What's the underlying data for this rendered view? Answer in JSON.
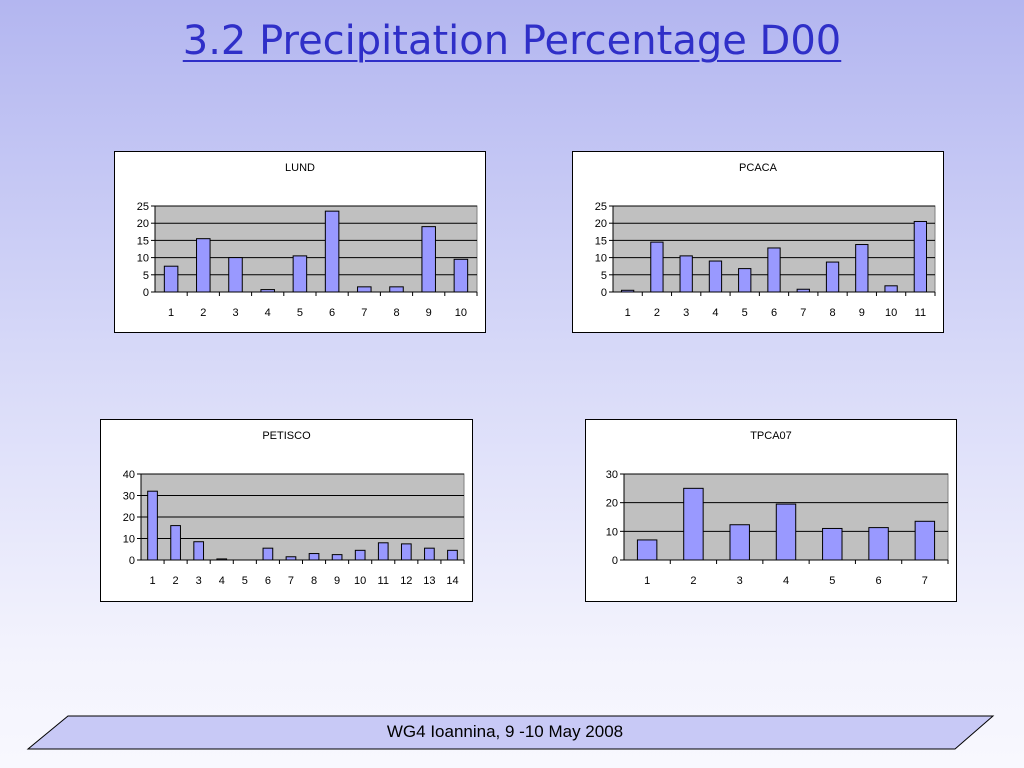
{
  "slide": {
    "title": "3.2 Precipitation Percentage D00",
    "footer": "WG4 Ioannina, 9 -10 May 2008"
  },
  "colors": {
    "bar_fill": "#9999ff",
    "plot_background": "#c0c0c0",
    "title_color": "#2f2fc8"
  },
  "chart_data": [
    {
      "type": "bar",
      "title": "LUND",
      "categories": [
        "1",
        "2",
        "3",
        "4",
        "5",
        "6",
        "7",
        "8",
        "9",
        "10"
      ],
      "values": [
        7.5,
        15.5,
        10,
        0.7,
        10.5,
        23.5,
        1.5,
        1.5,
        19,
        9.5
      ],
      "ylim": [
        0,
        25
      ],
      "yticks": [
        0,
        5,
        10,
        15,
        20,
        25
      ],
      "grid": true
    },
    {
      "type": "bar",
      "title": "PCACA",
      "categories": [
        "1",
        "2",
        "3",
        "4",
        "5",
        "6",
        "7",
        "8",
        "9",
        "10",
        "11"
      ],
      "values": [
        0.5,
        14.5,
        10.5,
        9,
        6.8,
        12.8,
        0.8,
        8.7,
        13.8,
        1.8,
        20.5
      ],
      "ylim": [
        0,
        25
      ],
      "yticks": [
        0,
        5,
        10,
        15,
        20,
        25
      ],
      "grid": true
    },
    {
      "type": "bar",
      "title": "PETISCO",
      "categories": [
        "1",
        "2",
        "3",
        "4",
        "5",
        "6",
        "7",
        "8",
        "9",
        "10",
        "11",
        "12",
        "13",
        "14"
      ],
      "values": [
        32,
        16,
        8.5,
        0.5,
        0,
        5.5,
        1.5,
        3,
        2.5,
        4.5,
        8,
        7.5,
        5.5,
        4.5
      ],
      "ylim": [
        0,
        40
      ],
      "yticks": [
        0,
        10,
        20,
        30,
        40
      ],
      "grid": true
    },
    {
      "type": "bar",
      "title": "TPCA07",
      "categories": [
        "1",
        "2",
        "3",
        "4",
        "5",
        "6",
        "7"
      ],
      "values": [
        7,
        25,
        12.3,
        19.5,
        11,
        11.3,
        13.5
      ],
      "ylim": [
        0,
        30
      ],
      "yticks": [
        0,
        10,
        20,
        30
      ],
      "grid": true
    }
  ]
}
